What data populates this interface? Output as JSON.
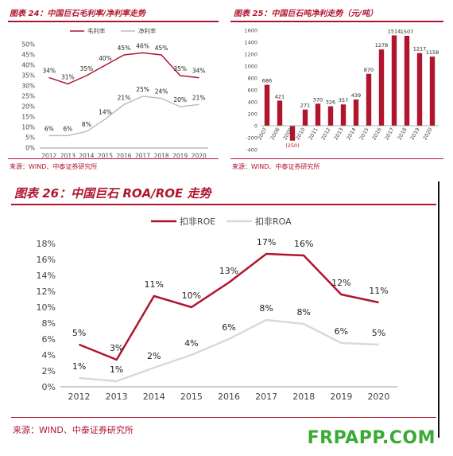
{
  "charts": [
    {
      "title": "图表 24：中国巨石毛利率/净利率走势",
      "source": "来源：WIND、中泰证券研究所",
      "chart_data": {
        "type": "line",
        "categories": [
          "2012",
          "2013",
          "2014",
          "2015",
          "2016",
          "2017",
          "2018",
          "2019",
          "2020"
        ],
        "ylim": [
          0,
          50
        ],
        "yticks": [
          "0%",
          "5%",
          "10%",
          "15%",
          "20%",
          "25%",
          "30%",
          "35%",
          "40%",
          "45%",
          "50%"
        ],
        "legend_position": "top",
        "series": [
          {
            "name": "毛利率",
            "color": "#b0152e",
            "values": [
              34,
              31,
              35,
              40,
              45,
              46,
              45,
              35,
              34
            ],
            "labels": [
              "34%",
              "31%",
              "35%",
              "40%",
              "45%",
              "46%",
              "45%",
              "35%",
              "34%"
            ]
          },
          {
            "name": "净利率",
            "color": "#bdbdbd",
            "values": [
              6,
              6,
              8,
              14,
              21,
              25,
              24,
              20,
              21
            ],
            "labels": [
              "6%",
              "6%",
              "8%",
              "14%",
              "21%",
              "25%",
              "24%",
              "20%",
              "21%"
            ]
          }
        ]
      }
    },
    {
      "title": "图表 25：中国巨石吨净利走势（元/吨）",
      "source": "来源：WIND、中泰证券研究所",
      "chart_data": {
        "type": "bar",
        "categories": [
          "2007",
          "2008",
          "2009",
          "2010",
          "2011",
          "2012",
          "2013",
          "2014",
          "2015",
          "2016",
          "2017",
          "2018",
          "2019",
          "2020"
        ],
        "values": [
          686,
          421,
          -250,
          271,
          370,
          326,
          357,
          439,
          870,
          1278,
          1514,
          1507,
          1217,
          1158
        ],
        "labels": [
          "686",
          "421",
          "(250)",
          "271",
          "370",
          "326",
          "357",
          "439",
          "870",
          "1278",
          "1514",
          "1507",
          "1217",
          "1158"
        ],
        "ylim": [
          -400,
          1600
        ],
        "yticks": [
          "-400",
          "-200",
          "0",
          "200",
          "400",
          "600",
          "800",
          "1000",
          "1200",
          "1400",
          "1600"
        ],
        "color": "#b0152e",
        "grid": false
      }
    },
    {
      "title": "图表 26：中国巨石 ROA/ROE 走势",
      "source": "来源：WIND、中泰证券研究所",
      "chart_data": {
        "type": "line",
        "categories": [
          "2012",
          "2013",
          "2014",
          "2015",
          "2016",
          "2017",
          "2018",
          "2019",
          "2020"
        ],
        "ylim": [
          0,
          18
        ],
        "yticks": [
          "0%",
          "2%",
          "4%",
          "6%",
          "8%",
          "10%",
          "12%",
          "14%",
          "16%",
          "18%"
        ],
        "legend_position": "top",
        "series": [
          {
            "name": "扣非ROE",
            "color": "#b0152e",
            "values": [
              5.3,
              3.4,
              11.4,
              10.0,
              13.1,
              16.7,
              16.5,
              11.6,
              10.6
            ],
            "labels": [
              "5%",
              "3%",
              "11%",
              "10%",
              "13%",
              "17%",
              "16%",
              "12%",
              "11%"
            ]
          },
          {
            "name": "扣非ROA",
            "color": "#d9d9d9",
            "values": [
              1.1,
              0.7,
              2.4,
              4.0,
              6.0,
              8.4,
              7.9,
              5.5,
              5.3
            ],
            "labels": [
              "1%",
              "1%",
              "2%",
              "4%",
              "6%",
              "8%",
              "8%",
              "6%",
              "5%"
            ]
          }
        ]
      }
    }
  ],
  "watermark": "FRPAPP.COM"
}
